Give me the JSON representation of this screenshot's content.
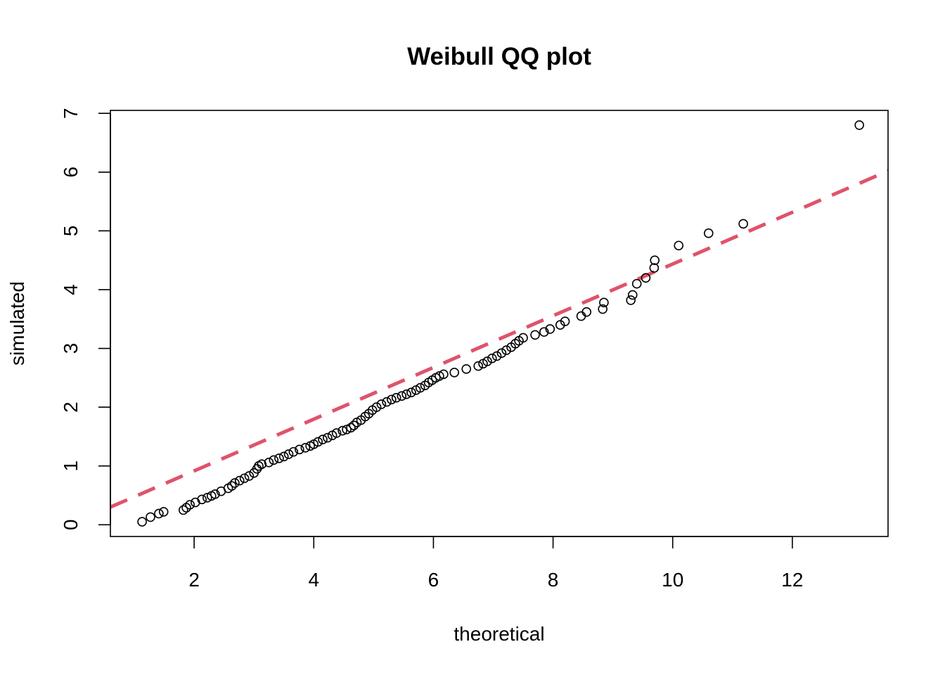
{
  "chart_data": {
    "type": "scatter",
    "title": "Weibull QQ plot",
    "xlabel": "theoretical",
    "ylabel": "simulated",
    "xlim": [
      0.6,
      13.6
    ],
    "ylim": [
      -0.2,
      7.05
    ],
    "xticks": [
      2,
      4,
      6,
      8,
      10,
      12
    ],
    "yticks": [
      0,
      1,
      2,
      3,
      4,
      5,
      6,
      7
    ],
    "grid": false,
    "legend": "none",
    "series": [
      {
        "marker": "open-circle",
        "color": "#000000",
        "points": [
          [
            1.13,
            0.05
          ],
          [
            1.27,
            0.13
          ],
          [
            1.41,
            0.19
          ],
          [
            1.49,
            0.22
          ],
          [
            1.82,
            0.25
          ],
          [
            1.87,
            0.29
          ],
          [
            1.93,
            0.34
          ],
          [
            2.02,
            0.38
          ],
          [
            2.13,
            0.43
          ],
          [
            2.22,
            0.46
          ],
          [
            2.29,
            0.49
          ],
          [
            2.35,
            0.52
          ],
          [
            2.45,
            0.57
          ],
          [
            2.57,
            0.62
          ],
          [
            2.63,
            0.66
          ],
          [
            2.68,
            0.71
          ],
          [
            2.76,
            0.75
          ],
          [
            2.84,
            0.79
          ],
          [
            2.92,
            0.83
          ],
          [
            3.0,
            0.88
          ],
          [
            3.05,
            0.95
          ],
          [
            3.08,
            1.0
          ],
          [
            3.13,
            1.03
          ],
          [
            3.25,
            1.06
          ],
          [
            3.33,
            1.1
          ],
          [
            3.42,
            1.13
          ],
          [
            3.5,
            1.16
          ],
          [
            3.58,
            1.2
          ],
          [
            3.66,
            1.24
          ],
          [
            3.76,
            1.28
          ],
          [
            3.86,
            1.31
          ],
          [
            3.94,
            1.34
          ],
          [
            4.0,
            1.37
          ],
          [
            4.07,
            1.41
          ],
          [
            4.15,
            1.45
          ],
          [
            4.23,
            1.48
          ],
          [
            4.31,
            1.52
          ],
          [
            4.38,
            1.56
          ],
          [
            4.48,
            1.6
          ],
          [
            4.55,
            1.62
          ],
          [
            4.62,
            1.65
          ],
          [
            4.67,
            1.69
          ],
          [
            4.72,
            1.74
          ],
          [
            4.79,
            1.78
          ],
          [
            4.86,
            1.84
          ],
          [
            4.92,
            1.89
          ],
          [
            4.98,
            1.95
          ],
          [
            5.05,
            2.0
          ],
          [
            5.13,
            2.05
          ],
          [
            5.22,
            2.09
          ],
          [
            5.3,
            2.13
          ],
          [
            5.38,
            2.16
          ],
          [
            5.47,
            2.19
          ],
          [
            5.55,
            2.22
          ],
          [
            5.63,
            2.25
          ],
          [
            5.71,
            2.29
          ],
          [
            5.78,
            2.33
          ],
          [
            5.86,
            2.37
          ],
          [
            5.92,
            2.42
          ],
          [
            5.98,
            2.46
          ],
          [
            6.04,
            2.5
          ],
          [
            6.1,
            2.53
          ],
          [
            6.17,
            2.56
          ],
          [
            6.35,
            2.59
          ],
          [
            6.55,
            2.65
          ],
          [
            6.75,
            2.7
          ],
          [
            6.83,
            2.74
          ],
          [
            6.9,
            2.78
          ],
          [
            6.98,
            2.83
          ],
          [
            7.06,
            2.87
          ],
          [
            7.14,
            2.92
          ],
          [
            7.22,
            2.97
          ],
          [
            7.3,
            3.02
          ],
          [
            7.37,
            3.08
          ],
          [
            7.43,
            3.13
          ],
          [
            7.5,
            3.18
          ],
          [
            7.7,
            3.23
          ],
          [
            7.85,
            3.28
          ],
          [
            7.95,
            3.33
          ],
          [
            8.12,
            3.4
          ],
          [
            8.2,
            3.46
          ],
          [
            8.47,
            3.55
          ],
          [
            8.56,
            3.62
          ],
          [
            8.83,
            3.67
          ],
          [
            8.85,
            3.78
          ],
          [
            9.3,
            3.82
          ],
          [
            9.33,
            3.91
          ],
          [
            9.4,
            4.1
          ],
          [
            9.55,
            4.2
          ],
          [
            9.69,
            4.37
          ],
          [
            9.7,
            4.5
          ],
          [
            10.1,
            4.75
          ],
          [
            10.6,
            4.96
          ],
          [
            11.18,
            5.12
          ],
          [
            13.12,
            6.8
          ]
        ]
      }
    ],
    "reference_line": {
      "style": "dashed",
      "color": "#DF536B",
      "x": [
        0.6,
        13.6
      ],
      "y": [
        0.3,
        6.02
      ]
    }
  }
}
